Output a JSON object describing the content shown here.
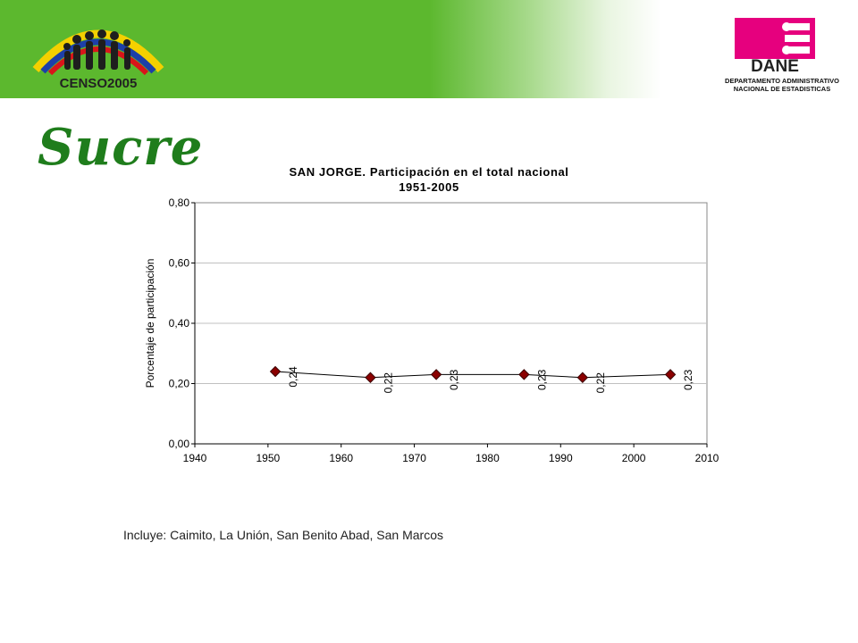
{
  "header": {
    "censo_logo_text": "CENSO2005",
    "dane_logo_text": "DANE",
    "dane_caption_line1": "DEPARTAMENTO ADMINISTRATIVO",
    "dane_caption_line2": "NACIONAL DE ESTADISTICAS"
  },
  "page": {
    "title": "Sucre",
    "note": "Incluye: Caimito, La Unión, San Benito Abad, San Marcos"
  },
  "colors": {
    "banner_green": "#5cb82e",
    "title_green": "#1f7d1c",
    "dane_magenta": "#e6007e",
    "marker": "#8b0000"
  },
  "chart_data": {
    "type": "line",
    "title_line1": "SAN JORGE. Participación en el total nacional",
    "title_line2": "1951-2005",
    "xlabel": "",
    "ylabel": "Porcentaje de participación",
    "xlim": [
      1940,
      2010
    ],
    "ylim": [
      0,
      0.8
    ],
    "x_ticks": [
      "1940",
      "1950",
      "1960",
      "1970",
      "1980",
      "1990",
      "2000",
      "2010"
    ],
    "y_ticks": [
      "0,00",
      "0,20",
      "0,40",
      "0,60",
      "0,80"
    ],
    "grid": true,
    "legend": "none",
    "x": [
      1951,
      1964,
      1973,
      1985,
      1993,
      2005
    ],
    "values": [
      0.24,
      0.22,
      0.23,
      0.23,
      0.22,
      0.23
    ],
    "data_labels": [
      "0,24",
      "0,22",
      "0,23",
      "0,23",
      "0,22",
      "0,23"
    ]
  }
}
